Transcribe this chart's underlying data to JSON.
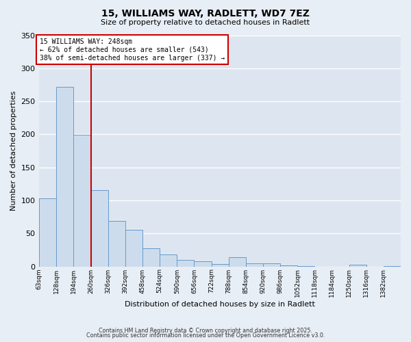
{
  "title": "15, WILLIAMS WAY, RADLETT, WD7 7EZ",
  "subtitle": "Size of property relative to detached houses in Radlett",
  "xlabel": "Distribution of detached houses by size in Radlett",
  "ylabel": "Number of detached properties",
  "bin_labels": [
    "63sqm",
    "128sqm",
    "194sqm",
    "260sqm",
    "326sqm",
    "392sqm",
    "458sqm",
    "524sqm",
    "590sqm",
    "656sqm",
    "722sqm",
    "788sqm",
    "854sqm",
    "920sqm",
    "986sqm",
    "1052sqm",
    "1118sqm",
    "1184sqm",
    "1250sqm",
    "1316sqm",
    "1382sqm"
  ],
  "bin_counts": [
    103,
    272,
    199,
    115,
    69,
    55,
    27,
    18,
    10,
    8,
    4,
    14,
    5,
    5,
    2,
    1,
    0,
    0,
    3,
    0,
    1
  ],
  "bar_color": "#cddcec",
  "bar_edgecolor": "#6699cc",
  "vline_x_bin_index": 3,
  "annotation_title": "15 WILLIAMS WAY: 248sqm",
  "annotation_line1": "← 62% of detached houses are smaller (543)",
  "annotation_line2": "38% of semi-detached houses are larger (337) →",
  "annotation_box_color": "#ffffff",
  "annotation_box_edgecolor": "#cc0000",
  "vline_color": "#cc0000",
  "footer1": "Contains HM Land Registry data © Crown copyright and database right 2025.",
  "footer2": "Contains public sector information licensed under the Open Government Licence v3.0.",
  "ylim": [
    0,
    350
  ],
  "yticks": [
    0,
    50,
    100,
    150,
    200,
    250,
    300,
    350
  ],
  "background_color": "#e8eef5",
  "grid_color": "#ffffff",
  "plot_bg_color": "#dde6f0"
}
